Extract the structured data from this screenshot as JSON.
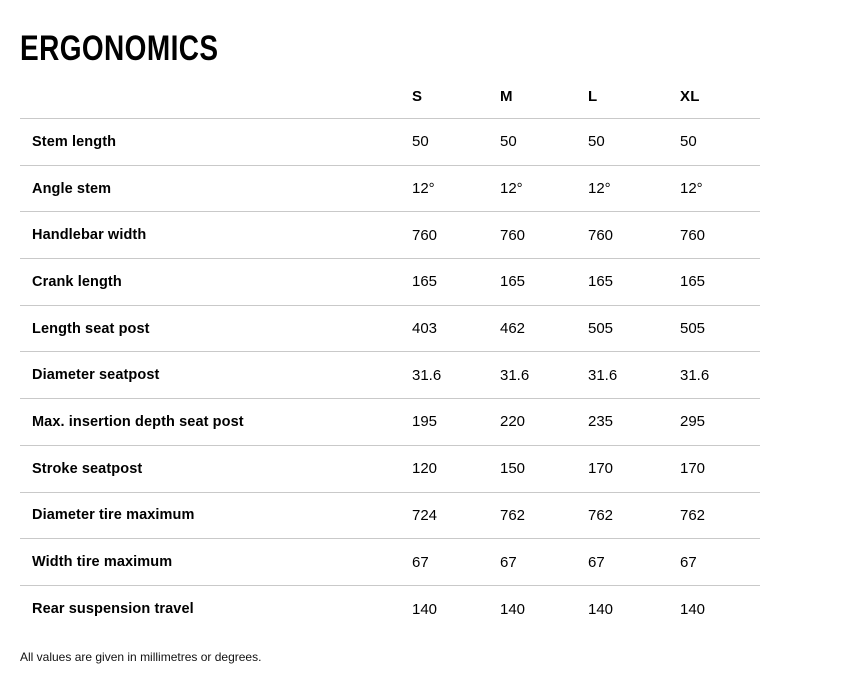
{
  "page": {
    "title": "ERGONOMICS",
    "footnote": "All values are given in millimetres or degrees."
  },
  "table": {
    "columns": [
      "S",
      "M",
      "L",
      "XL"
    ],
    "rows": [
      {
        "label": "Stem length",
        "values": [
          "50",
          "50",
          "50",
          "50"
        ]
      },
      {
        "label": "Angle stem",
        "values": [
          "12°",
          "12°",
          "12°",
          "12°"
        ]
      },
      {
        "label": "Handlebar width",
        "values": [
          "760",
          "760",
          "760",
          "760"
        ]
      },
      {
        "label": "Crank length",
        "values": [
          "165",
          "165",
          "165",
          "165"
        ]
      },
      {
        "label": "Length seat post",
        "values": [
          "403",
          "462",
          "505",
          "505"
        ]
      },
      {
        "label": "Diameter seatpost",
        "values": [
          "31.6",
          "31.6",
          "31.6",
          "31.6"
        ]
      },
      {
        "label": "Max. insertion depth seat post",
        "values": [
          "195",
          "220",
          "235",
          "295"
        ]
      },
      {
        "label": "Stroke seatpost",
        "values": [
          "120",
          "150",
          "170",
          "170"
        ]
      },
      {
        "label": "Diameter tire maximum",
        "values": [
          "724",
          "762",
          "762",
          "762"
        ]
      },
      {
        "label": "Width tire maximum",
        "values": [
          "67",
          "67",
          "67",
          "67"
        ]
      },
      {
        "label": "Rear suspension travel",
        "values": [
          "140",
          "140",
          "140",
          "140"
        ]
      }
    ]
  },
  "colors": {
    "text": "#000000",
    "divider": "#c9c9c9"
  }
}
